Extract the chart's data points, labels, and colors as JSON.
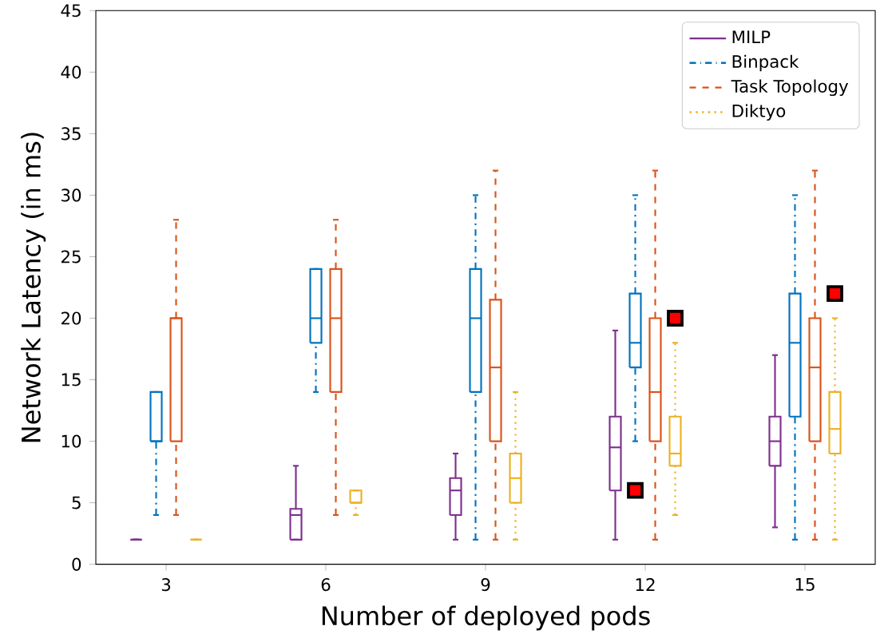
{
  "chart_data": {
    "type": "box",
    "xlabel": "Number of deployed pods",
    "ylabel": "Network Latency (in ms)",
    "categories": [
      "3",
      "6",
      "9",
      "12",
      "15"
    ],
    "ylim": [
      0,
      45
    ],
    "yticks": [
      0,
      5,
      10,
      15,
      20,
      25,
      30,
      35,
      40,
      45
    ],
    "legend": "top right",
    "marker": "square",
    "grid": false,
    "series": [
      {
        "name": "MILP",
        "color": "#7e2f8e",
        "line_style": "solid",
        "boxes": [
          {
            "low": 2,
            "q1": 2,
            "median": 2,
            "q3": 2,
            "high": 2
          },
          {
            "low": 2,
            "q1": 2,
            "median": 4,
            "q3": 4.5,
            "high": 8
          },
          {
            "low": 2,
            "q1": 4,
            "median": 6,
            "q3": 7,
            "high": 9
          },
          {
            "low": 2,
            "q1": 6,
            "median": 9.5,
            "q3": 12,
            "high": 19
          },
          {
            "low": 3,
            "q1": 8,
            "median": 10,
            "q3": 12,
            "high": 17
          }
        ]
      },
      {
        "name": "Binpack",
        "color": "#0072bd",
        "line_style": "dashdot",
        "boxes": [
          {
            "low": 4,
            "q1": 10,
            "median": 10,
            "q3": 14,
            "high": 14
          },
          {
            "low": 14,
            "q1": 18,
            "median": 20,
            "q3": 24,
            "high": 24
          },
          {
            "low": 2,
            "q1": 14,
            "median": 20,
            "q3": 24,
            "high": 30
          },
          {
            "low": 10,
            "q1": 16,
            "median": 18,
            "q3": 22,
            "high": 30,
            "outliers": [
              6
            ]
          },
          {
            "low": 2,
            "q1": 12,
            "median": 18,
            "q3": 22,
            "high": 30
          }
        ]
      },
      {
        "name": "Task Topology",
        "color": "#d95319",
        "line_style": "dashed",
        "boxes": [
          {
            "low": 4,
            "q1": 10,
            "median": 20,
            "q3": 20,
            "high": 28
          },
          {
            "low": 4,
            "q1": 14,
            "median": 20,
            "q3": 24,
            "high": 28
          },
          {
            "low": 2,
            "q1": 10,
            "median": 16,
            "q3": 21.5,
            "high": 32
          },
          {
            "low": 2,
            "q1": 10,
            "median": 14,
            "q3": 20,
            "high": 32
          },
          {
            "low": 2,
            "q1": 10,
            "median": 16,
            "q3": 20,
            "high": 32
          }
        ]
      },
      {
        "name": "Diktyo",
        "color": "#edb120",
        "line_style": "dotted",
        "boxes": [
          {
            "low": 2,
            "q1": 2,
            "median": 2,
            "q3": 2,
            "high": 2
          },
          {
            "low": 4,
            "q1": 5,
            "median": 5,
            "q3": 6,
            "high": 6
          },
          {
            "low": 2,
            "q1": 5,
            "median": 7,
            "q3": 9,
            "high": 14
          },
          {
            "low": 4,
            "q1": 8,
            "median": 9,
            "q3": 12,
            "high": 18,
            "outliers": [
              20
            ]
          },
          {
            "low": 2,
            "q1": 9,
            "median": 11,
            "q3": 14,
            "high": 20,
            "outliers": [
              22
            ]
          }
        ]
      }
    ]
  }
}
